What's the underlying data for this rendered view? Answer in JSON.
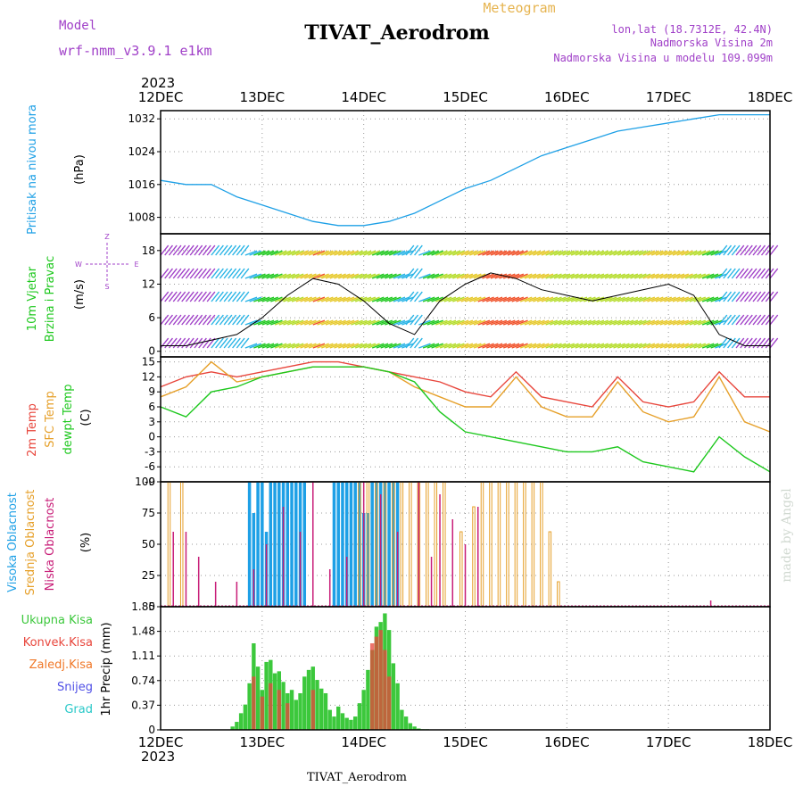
{
  "header": {
    "model_label": "Model",
    "model_name": "wrf-nmm_v3.9.1 e1km",
    "title": "TIVAT_Aerodrom",
    "subtitle": "Meteogram",
    "lonlat": "lon,lat (18.7312E, 42.4N)",
    "altitude": "Nadmorska Visina 2m",
    "model_altitude": "Nadmorska Visina u modelu 109.099m",
    "bottom_station": "TIVAT_Aerodrom",
    "watermark": "made by Angel",
    "year": "2023"
  },
  "colors": {
    "pressure": "#1ea0e6",
    "temp2m": "#e8463c",
    "sfc": "#e6a02a",
    "dew": "#1ec81e",
    "high": "#1ea0e6",
    "mid": "#e6a02a",
    "low": "#c81e78",
    "total": "#3cc83c",
    "conv": "#e8463c",
    "frozen": "#f07828",
    "snow": "#5050e6",
    "hail": "#28c8c8",
    "purple": "#a040c8"
  },
  "chart_data": [
    {
      "type": "line",
      "title": "Pritisak na nivou mora",
      "ylabel": "(hPa)",
      "x_ticks": [
        "12DEC",
        "13DEC",
        "14DEC",
        "15DEC",
        "16DEC",
        "17DEC",
        "18DEC"
      ],
      "ylim": [
        1004,
        1034
      ],
      "y_ticks": [
        "1008",
        "1016",
        "1024",
        "1032"
      ],
      "grid": true,
      "series": [
        {
          "x": [
            0,
            6,
            12,
            18,
            24,
            30,
            36,
            42,
            48,
            54,
            60,
            66,
            72,
            78,
            84,
            90,
            96,
            102,
            108,
            114,
            120,
            126,
            132,
            138,
            144
          ],
          "values": [
            1017,
            1016,
            1016,
            1013,
            1011,
            1009,
            1007,
            1006,
            1006,
            1007,
            1009,
            1012,
            1015,
            1017,
            1020,
            1023,
            1025,
            1027,
            1029,
            1030,
            1031,
            1032,
            1033,
            1033,
            1033
          ]
        }
      ]
    },
    {
      "type": "line",
      "title": "10m Vjetar Brzina i Pravac",
      "ylabel": "(m/s)",
      "ylim": [
        -1,
        21
      ],
      "y_ticks": [
        "0",
        "6",
        "12",
        "18"
      ],
      "compass": [
        "W",
        "E",
        "Z",
        "S"
      ],
      "grid": true,
      "series": [
        {
          "name": "speed",
          "x": [
            0,
            6,
            12,
            18,
            24,
            30,
            36,
            42,
            48,
            54,
            60,
            66,
            72,
            78,
            84,
            90,
            96,
            102,
            108,
            114,
            120,
            126,
            132,
            138,
            144
          ],
          "values": [
            1,
            1,
            2,
            3,
            6,
            10,
            13,
            12,
            9,
            5,
            3,
            9,
            12,
            14,
            13,
            11,
            10,
            9,
            10,
            11,
            12,
            10,
            3,
            1,
            1
          ]
        }
      ]
    },
    {
      "type": "line",
      "ylabel": "(C)",
      "ylim": [
        -9,
        16
      ],
      "y_ticks": [
        "15",
        "12",
        "9",
        "6",
        "3",
        "0",
        "-3",
        "-6",
        "-9"
      ],
      "grid": true,
      "series": [
        {
          "name": "2m Temp",
          "x": [
            0,
            6,
            12,
            18,
            24,
            30,
            36,
            42,
            48,
            54,
            60,
            66,
            72,
            78,
            84,
            90,
            96,
            102,
            108,
            114,
            120,
            126,
            132,
            138,
            144
          ],
          "values": [
            10,
            12,
            13,
            12,
            13,
            14,
            15,
            15,
            14,
            13,
            12,
            11,
            9,
            8,
            13,
            8,
            7,
            6,
            12,
            7,
            6,
            7,
            13,
            8,
            8
          ]
        },
        {
          "name": "SFC Temp",
          "x": [
            0,
            6,
            12,
            18,
            24,
            30,
            36,
            42,
            48,
            54,
            60,
            66,
            72,
            78,
            84,
            90,
            96,
            102,
            108,
            114,
            120,
            126,
            132,
            138,
            144
          ],
          "values": [
            8,
            10,
            15,
            11,
            12,
            13,
            14,
            14,
            14,
            13,
            10,
            8,
            6,
            6,
            12,
            6,
            4,
            4,
            11,
            5,
            3,
            4,
            12,
            3,
            1
          ]
        },
        {
          "name": "dewpt Temp",
          "x": [
            0,
            6,
            12,
            18,
            24,
            30,
            36,
            42,
            48,
            54,
            60,
            66,
            72,
            78,
            84,
            90,
            96,
            102,
            108,
            114,
            120,
            126,
            132,
            138,
            144
          ],
          "values": [
            6,
            4,
            9,
            10,
            12,
            13,
            14,
            14,
            14,
            13,
            11,
            5,
            1,
            0,
            -1,
            -2,
            -3,
            -3,
            -2,
            -5,
            -6,
            -7,
            0,
            -4,
            -7
          ]
        }
      ]
    },
    {
      "type": "bar",
      "ylabel": "(%)",
      "ylim": [
        0,
        100
      ],
      "y_ticks": [
        "0",
        "25",
        "50",
        "75",
        "100"
      ],
      "grid": true,
      "series": [
        {
          "name": "Visoka Oblacnost",
          "x": [
            21,
            22,
            23,
            24,
            25,
            26,
            27,
            28,
            29,
            30,
            31,
            32,
            33,
            34,
            41,
            42,
            43,
            44,
            45,
            46,
            47,
            48,
            49,
            50,
            51,
            52,
            53,
            54,
            55,
            56
          ],
          "values": [
            100,
            75,
            100,
            100,
            60,
            100,
            100,
            100,
            100,
            100,
            100,
            100,
            100,
            100,
            100,
            100,
            100,
            100,
            100,
            100,
            100,
            75,
            75,
            100,
            100,
            100,
            100,
            100,
            100,
            100
          ]
        },
        {
          "name": "Srednja Oblacnost",
          "x": [
            2,
            5,
            47,
            49,
            51,
            53,
            55,
            57,
            59,
            61,
            63,
            65,
            67,
            71,
            74,
            76,
            78,
            80,
            82,
            84,
            86,
            88,
            90,
            92,
            94
          ],
          "values": [
            100,
            100,
            100,
            100,
            100,
            100,
            100,
            100,
            100,
            100,
            100,
            100,
            100,
            60,
            80,
            100,
            100,
            100,
            100,
            100,
            100,
            100,
            100,
            60,
            20
          ]
        },
        {
          "name": "Niska Oblacnost",
          "x": [
            3,
            6,
            9,
            13,
            18,
            22,
            25,
            29,
            33,
            36,
            40,
            44,
            48,
            52,
            56,
            61,
            64,
            66,
            69,
            72,
            75,
            130
          ],
          "values": [
            60,
            60,
            40,
            20,
            20,
            30,
            50,
            80,
            60,
            100,
            30,
            40,
            100,
            90,
            60,
            100,
            40,
            90,
            70,
            50,
            80,
            5
          ]
        }
      ]
    },
    {
      "type": "bar",
      "ylabel": "1hr Precip (mm)",
      "ylim": [
        0,
        1.85
      ],
      "y_ticks": [
        "0",
        "0.37",
        "0.74",
        "1.11",
        "1.48",
        "1.85"
      ],
      "grid": true,
      "series": [
        {
          "name": "Ukupna Kisa",
          "x": [
            17,
            18,
            19,
            20,
            21,
            22,
            23,
            24,
            25,
            26,
            27,
            28,
            29,
            30,
            31,
            32,
            33,
            34,
            35,
            36,
            37,
            38,
            39,
            40,
            41,
            42,
            43,
            44,
            45,
            46,
            47,
            48,
            49,
            50,
            51,
            52,
            53,
            54,
            55,
            56,
            57,
            58,
            59,
            60,
            61,
            62,
            63,
            64,
            65
          ],
          "values": [
            0.05,
            0.12,
            0.25,
            0.38,
            0.7,
            1.3,
            0.95,
            0.6,
            1.02,
            1.05,
            0.85,
            0.88,
            0.72,
            0.55,
            0.6,
            0.45,
            0.55,
            0.8,
            0.9,
            0.95,
            0.75,
            0.62,
            0.55,
            0.3,
            0.2,
            0.35,
            0.25,
            0.18,
            0.15,
            0.2,
            0.4,
            0.6,
            0.9,
            1.2,
            1.55,
            1.62,
            1.75,
            1.5,
            1.0,
            0.7,
            0.3,
            0.2,
            0.1,
            0.05,
            0.02,
            0.01,
            0.01,
            0.0,
            0.0
          ]
        },
        {
          "name": "Konvek.Kisa",
          "x": [
            22,
            24,
            26,
            28,
            30,
            36,
            50,
            51,
            52,
            53,
            54
          ],
          "values": [
            0.8,
            0.5,
            0.7,
            0.6,
            0.4,
            0.6,
            1.3,
            1.4,
            1.5,
            1.2,
            0.8
          ]
        }
      ]
    }
  ],
  "legend": {
    "p1": "Pritisak na nivou mora",
    "p2a": "10m Vjetar",
    "p2b": "Brzina i Pravac",
    "p3a": "2m Temp",
    "p3b": "SFC Temp",
    "p3c": "dewpt Temp",
    "p4a": "Visoka Oblacnost",
    "p4b": "Srednja Oblacnost",
    "p4c": "Niska Oblacnost",
    "p5a": "Ukupna Kisa",
    "p5b": "Konvek.Kisa",
    "p5c": "Zaledj.Kisa",
    "p5d": "Snijeg",
    "p5e": "Grad"
  }
}
